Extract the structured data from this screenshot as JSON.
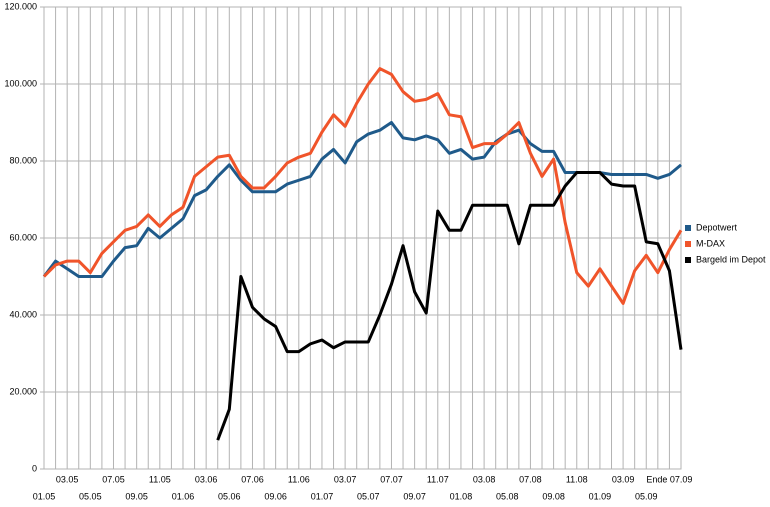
{
  "chart_data": {
    "type": "line",
    "categories": [
      "01.05",
      null,
      "03.05",
      null,
      "05.05",
      null,
      "07.05",
      null,
      "09.05",
      null,
      "11.05",
      null,
      "01.06",
      null,
      "03.06",
      null,
      "05.06",
      null,
      "07.06",
      null,
      "09.06",
      null,
      "11.06",
      null,
      "01.07",
      null,
      "03.07",
      null,
      "05.07",
      null,
      "07.07",
      null,
      "09.07",
      null,
      "11.07",
      null,
      "01.08",
      null,
      "03.08",
      null,
      "05.08",
      null,
      "07.08",
      null,
      "09.08",
      null,
      "11.08",
      null,
      "01.09",
      null,
      "03.09",
      null,
      "05.09",
      null,
      "Ende 07.09",
      null
    ],
    "series": [
      {
        "name": "Depotwert",
        "color": "#1f5a8a",
        "values": [
          50000,
          54000,
          52000,
          50000,
          50000,
          50000,
          54000,
          57500,
          58000,
          62500,
          60000,
          62500,
          65000,
          71000,
          72500,
          76000,
          79000,
          75000,
          72000,
          72000,
          72000,
          74000,
          75000,
          76000,
          80500,
          83000,
          79500,
          85000,
          87000,
          88000,
          90000,
          86000,
          85500,
          86500,
          85500,
          82000,
          83000,
          80500,
          81000,
          85000,
          87000,
          88000,
          84500,
          82500,
          82500,
          77000,
          77000,
          77000,
          77000,
          76500,
          76500,
          76500,
          76500,
          75500,
          76500,
          79000
        ]
      },
      {
        "name": "M-DAX",
        "color": "#f0542a",
        "values": [
          50000,
          53000,
          54000,
          54000,
          51000,
          56000,
          59000,
          62000,
          63000,
          66000,
          63000,
          66000,
          68000,
          76000,
          78500,
          81000,
          81500,
          76000,
          73000,
          73000,
          76000,
          79500,
          81000,
          82000,
          87500,
          92000,
          89000,
          95000,
          100000,
          104000,
          102500,
          98000,
          95500,
          96000,
          97500,
          92000,
          91500,
          83500,
          84500,
          84500,
          87000,
          90000,
          82000,
          76000,
          80500,
          64000,
          51000,
          47500,
          52000,
          47500,
          43000,
          51500,
          55500,
          51000,
          57000,
          62000
        ]
      },
      {
        "name": "Bargeld im Depot",
        "color": "#000000",
        "values": [
          null,
          null,
          null,
          null,
          null,
          null,
          null,
          null,
          null,
          null,
          null,
          null,
          null,
          null,
          null,
          7500,
          15500,
          50000,
          42000,
          39000,
          37000,
          30500,
          30500,
          32500,
          33500,
          31500,
          33000,
          33000,
          33000,
          40000,
          48000,
          58000,
          46000,
          40500,
          67000,
          62000,
          62000,
          68500,
          68500,
          68500,
          68500,
          58500,
          68500,
          68500,
          68500,
          73500,
          77000,
          77000,
          77000,
          74000,
          73500,
          73500,
          59000,
          58500,
          51500,
          31000
        ]
      }
    ],
    "ylim": [
      0,
      120000
    ],
    "yticks": [
      {
        "value": 0,
        "label": "0"
      },
      {
        "value": 20000,
        "label": "20.000"
      },
      {
        "value": 40000,
        "label": "40.000"
      },
      {
        "value": 60000,
        "label": "60.000"
      },
      {
        "value": 80000,
        "label": "80.000"
      },
      {
        "value": 100000,
        "label": "100.000"
      },
      {
        "value": 120000,
        "label": "120.000"
      }
    ],
    "grid": true,
    "legend": "right"
  }
}
